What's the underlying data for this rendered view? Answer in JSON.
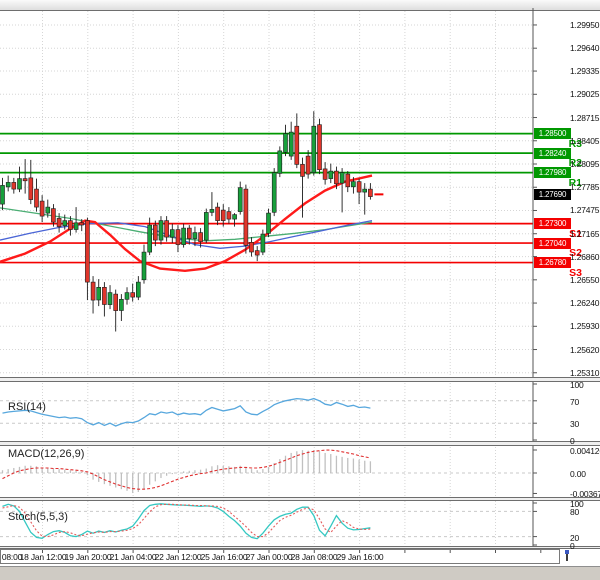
{
  "current_price": "1.27690",
  "levels": {
    "resistance": [
      {
        "name": "R3",
        "price": "1.28500"
      },
      {
        "name": "R2",
        "price": "1.28240"
      },
      {
        "name": "R1",
        "price": "1.27980"
      }
    ],
    "support": [
      {
        "name": "S1",
        "price": "1.27300"
      },
      {
        "name": "S2",
        "price": "1.27040"
      },
      {
        "name": "S3",
        "price": "1.26780"
      }
    ]
  },
  "price_axis": {
    "ticks": [
      "1.29950",
      "1.29640",
      "1.29335",
      "1.29025",
      "1.28715",
      "1.28405",
      "1.28095",
      "1.27785",
      "1.27475",
      "1.27165",
      "1.26860",
      "1.26550",
      "1.26240",
      "1.25930",
      "1.25620",
      "1.25310"
    ]
  },
  "time_axis": {
    "labels": [
      "08:00",
      "18 Jan 12:00",
      "19 Jan 20:00",
      "21 Jan 04:00",
      "22 Jan 12:00",
      "25 Jan 16:00",
      "27 Jan 00:00",
      "28 Jan 08:00",
      "29 Jan 16:00"
    ]
  },
  "indicators": {
    "rsi_label": "RSI(14)",
    "macd_label": "MACD(12,26,9)",
    "stoch_label": "Stoch(5,5,3)",
    "rsi_ticks": [
      "100",
      "70",
      "30",
      "0"
    ],
    "macd_ticks": [
      "0.004126",
      "0.00",
      "-0.00367"
    ],
    "stoch_ticks": [
      "100",
      "80",
      "20",
      "0"
    ]
  },
  "colors": {
    "bull": "#18a03c",
    "bear": "#e0352b",
    "candle_outline": "#1c1c1c",
    "resistance": "#009800",
    "support": "#f40000",
    "current_price_bg": "#000000",
    "ma_green": "#4bae74",
    "ma_blue": "#4a65d6",
    "ma_red": "#ff1a1a",
    "rsi_line": "#57a7dd",
    "macd_histogram": "#c0c0c0",
    "macd_signal": "#e03030",
    "stoch_k": "#35c8c2",
    "stoch_d": "#e45b5b",
    "grid": "#d6d6d6",
    "axis_border": "#555555"
  },
  "chart_data": {
    "type": "candlestick",
    "title": "",
    "x_labels": [
      "08:00",
      "18 Jan 12:00",
      "19 Jan 20:00",
      "21 Jan 04:00",
      "22 Jan 12:00",
      "25 Jan 16:00",
      "27 Jan 00:00",
      "28 Jan 08:00",
      "29 Jan 16:00"
    ],
    "price_ticks": [
      1.2995,
      1.2964,
      1.29335,
      1.29025,
      1.28715,
      1.28405,
      1.28095,
      1.27785,
      1.27475,
      1.27165,
      1.2686,
      1.2655,
      1.2624,
      1.2593,
      1.2562,
      1.2531
    ],
    "ylim": [
      1.252535,
      1.301362
    ],
    "last_price": 1.2769,
    "levels": {
      "resistance": [
        {
          "label": "R3",
          "price": 1.285
        },
        {
          "label": "R2",
          "price": 1.2824
        },
        {
          "label": "R1",
          "price": 1.2798
        }
      ],
      "support": [
        {
          "label": "S1",
          "price": 1.273
        },
        {
          "label": "S2",
          "price": 1.2704
        },
        {
          "label": "S3",
          "price": 1.2678
        }
      ]
    },
    "candles_ohlc": [
      [
        1.2756,
        1.2791,
        1.2748,
        1.2781
      ],
      [
        1.2779,
        1.2794,
        1.2773,
        1.2785
      ],
      [
        1.2785,
        1.2791,
        1.277,
        1.2776
      ],
      [
        1.2776,
        1.2806,
        1.2772,
        1.279
      ],
      [
        1.279,
        1.2816,
        1.277,
        1.2787
      ],
      [
        1.2791,
        1.2815,
        1.2756,
        1.2762
      ],
      [
        1.2776,
        1.279,
        1.2746,
        1.2752
      ],
      [
        1.276,
        1.2768,
        1.2732,
        1.274
      ],
      [
        1.2744,
        1.2762,
        1.2738,
        1.2752
      ],
      [
        1.275,
        1.2756,
        1.2726,
        1.2732
      ],
      [
        1.2737,
        1.2744,
        1.2718,
        1.2726
      ],
      [
        1.2727,
        1.2742,
        1.2722,
        1.2734
      ],
      [
        1.2734,
        1.274,
        1.2714,
        1.2722
      ],
      [
        1.2722,
        1.2752,
        1.2718,
        1.2731
      ],
      [
        1.2731,
        1.2736,
        1.272,
        1.2728
      ],
      [
        1.2734,
        1.2738,
        1.2628,
        1.2652
      ],
      [
        1.2652,
        1.266,
        1.261,
        1.2628
      ],
      [
        1.2628,
        1.2656,
        1.262,
        1.2645
      ],
      [
        1.2645,
        1.2652,
        1.2606,
        1.2622
      ],
      [
        1.2622,
        1.2648,
        1.2616,
        1.2638
      ],
      [
        1.2636,
        1.2642,
        1.2586,
        1.2614
      ],
      [
        1.2614,
        1.2636,
        1.26,
        1.2629
      ],
      [
        1.2629,
        1.2645,
        1.2622,
        1.2638
      ],
      [
        1.2638,
        1.265,
        1.2626,
        1.2632
      ],
      [
        1.2632,
        1.266,
        1.2628,
        1.2652
      ],
      [
        1.2655,
        1.2702,
        1.265,
        1.2692
      ],
      [
        1.2692,
        1.2738,
        1.2688,
        1.2728
      ],
      [
        1.2728,
        1.2734,
        1.27,
        1.2708
      ],
      [
        1.2708,
        1.274,
        1.2702,
        1.2734
      ],
      [
        1.2734,
        1.274,
        1.2706,
        1.2712
      ],
      [
        1.2712,
        1.273,
        1.2704,
        1.2722
      ],
      [
        1.2722,
        1.2728,
        1.2692,
        1.2702
      ],
      [
        1.2702,
        1.273,
        1.2698,
        1.2724
      ],
      [
        1.2724,
        1.2728,
        1.2702,
        1.271
      ],
      [
        1.271,
        1.2726,
        1.27,
        1.2718
      ],
      [
        1.2718,
        1.2724,
        1.2698,
        1.2706
      ],
      [
        1.2708,
        1.275,
        1.2704,
        1.2745
      ],
      [
        1.2745,
        1.2772,
        1.274,
        1.2749
      ],
      [
        1.2752,
        1.2758,
        1.2728,
        1.2734
      ],
      [
        1.2748,
        1.2756,
        1.2726,
        1.2734
      ],
      [
        1.2746,
        1.2752,
        1.273,
        1.2736
      ],
      [
        1.2736,
        1.2744,
        1.2726,
        1.2742
      ],
      [
        1.2746,
        1.2786,
        1.2742,
        1.2778
      ],
      [
        1.2776,
        1.2782,
        1.269,
        1.2701
      ],
      [
        1.2705,
        1.2712,
        1.2686,
        1.2692
      ],
      [
        1.2694,
        1.27,
        1.268,
        1.2688
      ],
      [
        1.2692,
        1.2722,
        1.2688,
        1.2716
      ],
      [
        1.2717,
        1.275,
        1.2712,
        1.2744
      ],
      [
        1.2745,
        1.2804,
        1.274,
        1.2798
      ],
      [
        1.2797,
        1.2833,
        1.2792,
        1.2827
      ],
      [
        1.2825,
        1.2862,
        1.282,
        1.285
      ],
      [
        1.282,
        1.2866,
        1.2815,
        1.2852
      ],
      [
        1.286,
        1.2877,
        1.2804,
        1.2809
      ],
      [
        1.2809,
        1.2818,
        1.2738,
        1.2793
      ],
      [
        1.282,
        1.2828,
        1.279,
        1.2796
      ],
      [
        1.2798,
        1.288,
        1.2794,
        1.286
      ],
      [
        1.2862,
        1.287,
        1.2796,
        1.2802
      ],
      [
        1.2803,
        1.2812,
        1.2782,
        1.2789
      ],
      [
        1.279,
        1.281,
        1.2784,
        1.28
      ],
      [
        1.28,
        1.2806,
        1.2776,
        1.2783
      ],
      [
        1.2784,
        1.2804,
        1.2745,
        1.2798
      ],
      [
        1.2796,
        1.28,
        1.2772,
        1.2779
      ],
      [
        1.2779,
        1.2792,
        1.277,
        1.2786
      ],
      [
        1.2786,
        1.279,
        1.2756,
        1.2772
      ],
      [
        1.2772,
        1.2784,
        1.2742,
        1.2776
      ],
      [
        1.2776,
        1.2784,
        1.2762,
        1.2766
      ]
    ],
    "moving_averages": [
      {
        "name": "ma-green",
        "points": [
          [
            0,
            1.2751
          ],
          [
            35,
            1.2744
          ],
          [
            70,
            1.2737
          ],
          [
            105,
            1.2728
          ],
          [
            140,
            1.2719
          ],
          [
            175,
            1.2711
          ],
          [
            205,
            1.2707
          ],
          [
            235,
            1.2709
          ],
          [
            265,
            1.2713
          ],
          [
            295,
            1.2717
          ],
          [
            325,
            1.2722
          ],
          [
            372,
            1.2732
          ]
        ]
      },
      {
        "name": "ma-blue",
        "points": [
          [
            0,
            1.2708
          ],
          [
            30,
            1.2717
          ],
          [
            60,
            1.2725
          ],
          [
            90,
            1.273
          ],
          [
            118,
            1.2731
          ],
          [
            145,
            1.2726
          ],
          [
            170,
            1.2714
          ],
          [
            195,
            1.2702
          ],
          [
            220,
            1.2697
          ],
          [
            245,
            1.27
          ],
          [
            270,
            1.2706
          ],
          [
            295,
            1.2713
          ],
          [
            320,
            1.272
          ],
          [
            345,
            1.2727
          ],
          [
            372,
            1.2734
          ]
        ]
      },
      {
        "name": "ma-red",
        "points": [
          [
            0,
            1.2679
          ],
          [
            25,
            1.269
          ],
          [
            50,
            1.2706
          ],
          [
            70,
            1.2723
          ],
          [
            85,
            1.2734
          ],
          [
            95,
            1.2732
          ],
          [
            110,
            1.2715
          ],
          [
            125,
            1.2696
          ],
          [
            140,
            1.268
          ],
          [
            160,
            1.267
          ],
          [
            185,
            1.2667
          ],
          [
            205,
            1.267
          ],
          [
            225,
            1.268
          ],
          [
            245,
            1.2695
          ],
          [
            265,
            1.2714
          ],
          [
            285,
            1.2736
          ],
          [
            305,
            1.2757
          ],
          [
            325,
            1.2774
          ],
          [
            345,
            1.2786
          ],
          [
            372,
            1.2794
          ]
        ]
      }
    ],
    "subcharts": [
      {
        "type": "line",
        "name": "RSI(14)",
        "range": [
          0,
          100
        ],
        "ticks": [
          100,
          70,
          30,
          0
        ],
        "values": [
          48,
          50,
          51,
          52,
          53,
          52,
          49,
          46,
          44,
          42,
          40,
          41,
          39,
          40,
          38,
          31,
          27,
          31,
          26,
          30,
          25,
          29,
          32,
          31,
          34,
          40,
          47,
          45,
          50,
          48,
          50,
          45,
          48,
          46,
          47,
          45,
          53,
          58,
          55,
          52,
          54,
          56,
          61,
          50,
          46,
          45,
          51,
          56,
          63,
          67,
          70,
          72,
          74,
          73,
          71,
          74,
          70,
          64,
          62,
          67,
          64,
          60,
          62,
          58,
          59,
          57
        ]
      },
      {
        "type": "histogram+line",
        "name": "MACD(12,26,9)",
        "ticks": [
          0.004126,
          0.0,
          -0.00367
        ],
        "histogram": [
          0.0005,
          0.0007,
          0.0009,
          0.0011,
          0.0013,
          0.0013,
          0.0012,
          0.001,
          0.0009,
          0.0008,
          0.0007,
          0.0006,
          0.0005,
          0.0004,
          0.0002,
          -0.0004,
          -0.0012,
          -0.0016,
          -0.002,
          -0.0023,
          -0.0026,
          -0.0029,
          -0.0032,
          -0.0036,
          -0.0034,
          -0.0029,
          -0.0021,
          -0.0015,
          -0.0009,
          -0.0005,
          -0.0002,
          0.0001,
          0.0003,
          0.0004,
          0.0005,
          0.0006,
          0.0008,
          0.0012,
          0.0014,
          0.0013,
          0.0012,
          0.0011,
          0.0013,
          0.001,
          0.0007,
          0.0005,
          0.0007,
          0.0011,
          0.0018,
          0.0025,
          0.0031,
          0.0036,
          0.0039,
          0.0041,
          0.004,
          0.0041,
          0.0039,
          0.0036,
          0.0034,
          0.0031,
          0.0029,
          0.0027,
          0.0026,
          0.0024,
          0.0022,
          0.0021
        ],
        "signal": [
          -0.001,
          -0.0005,
          0.0,
          0.0004,
          0.0006,
          0.0008,
          0.0009,
          0.0009,
          0.0009,
          0.0008,
          0.0008,
          0.0007,
          0.0006,
          0.0005,
          0.0004,
          0.0002,
          -0.0002,
          -0.0007,
          -0.0012,
          -0.0016,
          -0.002,
          -0.0023,
          -0.0026,
          -0.0028,
          -0.0029,
          -0.0029,
          -0.0028,
          -0.0026,
          -0.0023,
          -0.0019,
          -0.0015,
          -0.0011,
          -0.0008,
          -0.0005,
          -0.0003,
          -0.0001,
          0.0,
          0.0003,
          0.0005,
          0.0007,
          0.0008,
          0.0009,
          0.001,
          0.001,
          0.0009,
          0.0009,
          0.001,
          0.0012,
          0.0015,
          0.0019,
          0.0023,
          0.0027,
          0.0031,
          0.0034,
          0.0037,
          0.0039,
          0.004,
          0.0041,
          0.0041,
          0.004,
          0.0038,
          0.0036,
          0.0034,
          0.0031,
          0.0029,
          0.0027
        ]
      },
      {
        "type": "line",
        "name": "Stoch(5,5,3)",
        "range": [
          0,
          100
        ],
        "ticks": [
          100,
          80,
          20,
          0
        ],
        "k": [
          92,
          97,
          93,
          80,
          55,
          30,
          18,
          16,
          25,
          32,
          34,
          30,
          22,
          20,
          25,
          33,
          28,
          33,
          30,
          34,
          31,
          35,
          38,
          45,
          62,
          82,
          94,
          97,
          98,
          97,
          96,
          95,
          95,
          94,
          93,
          92,
          93,
          92,
          88,
          80,
          68,
          58,
          45,
          28,
          18,
          15,
          28,
          45,
          60,
          68,
          73,
          76,
          85,
          90,
          90,
          70,
          35,
          22,
          45,
          70,
          52,
          40,
          36,
          37,
          39,
          41
        ],
        "d": [
          88,
          91,
          94,
          90,
          76,
          55,
          34,
          21,
          20,
          24,
          30,
          32,
          29,
          24,
          22,
          26,
          29,
          31,
          30,
          32,
          32,
          33,
          35,
          39,
          48,
          63,
          79,
          91,
          96,
          97,
          97,
          96,
          95,
          95,
          94,
          94,
          93,
          93,
          92,
          88,
          80,
          68,
          57,
          44,
          30,
          20,
          20,
          29,
          44,
          58,
          66,
          71,
          78,
          85,
          88,
          84,
          62,
          38,
          30,
          45,
          58,
          52,
          42,
          38,
          37,
          38
        ]
      }
    ]
  }
}
